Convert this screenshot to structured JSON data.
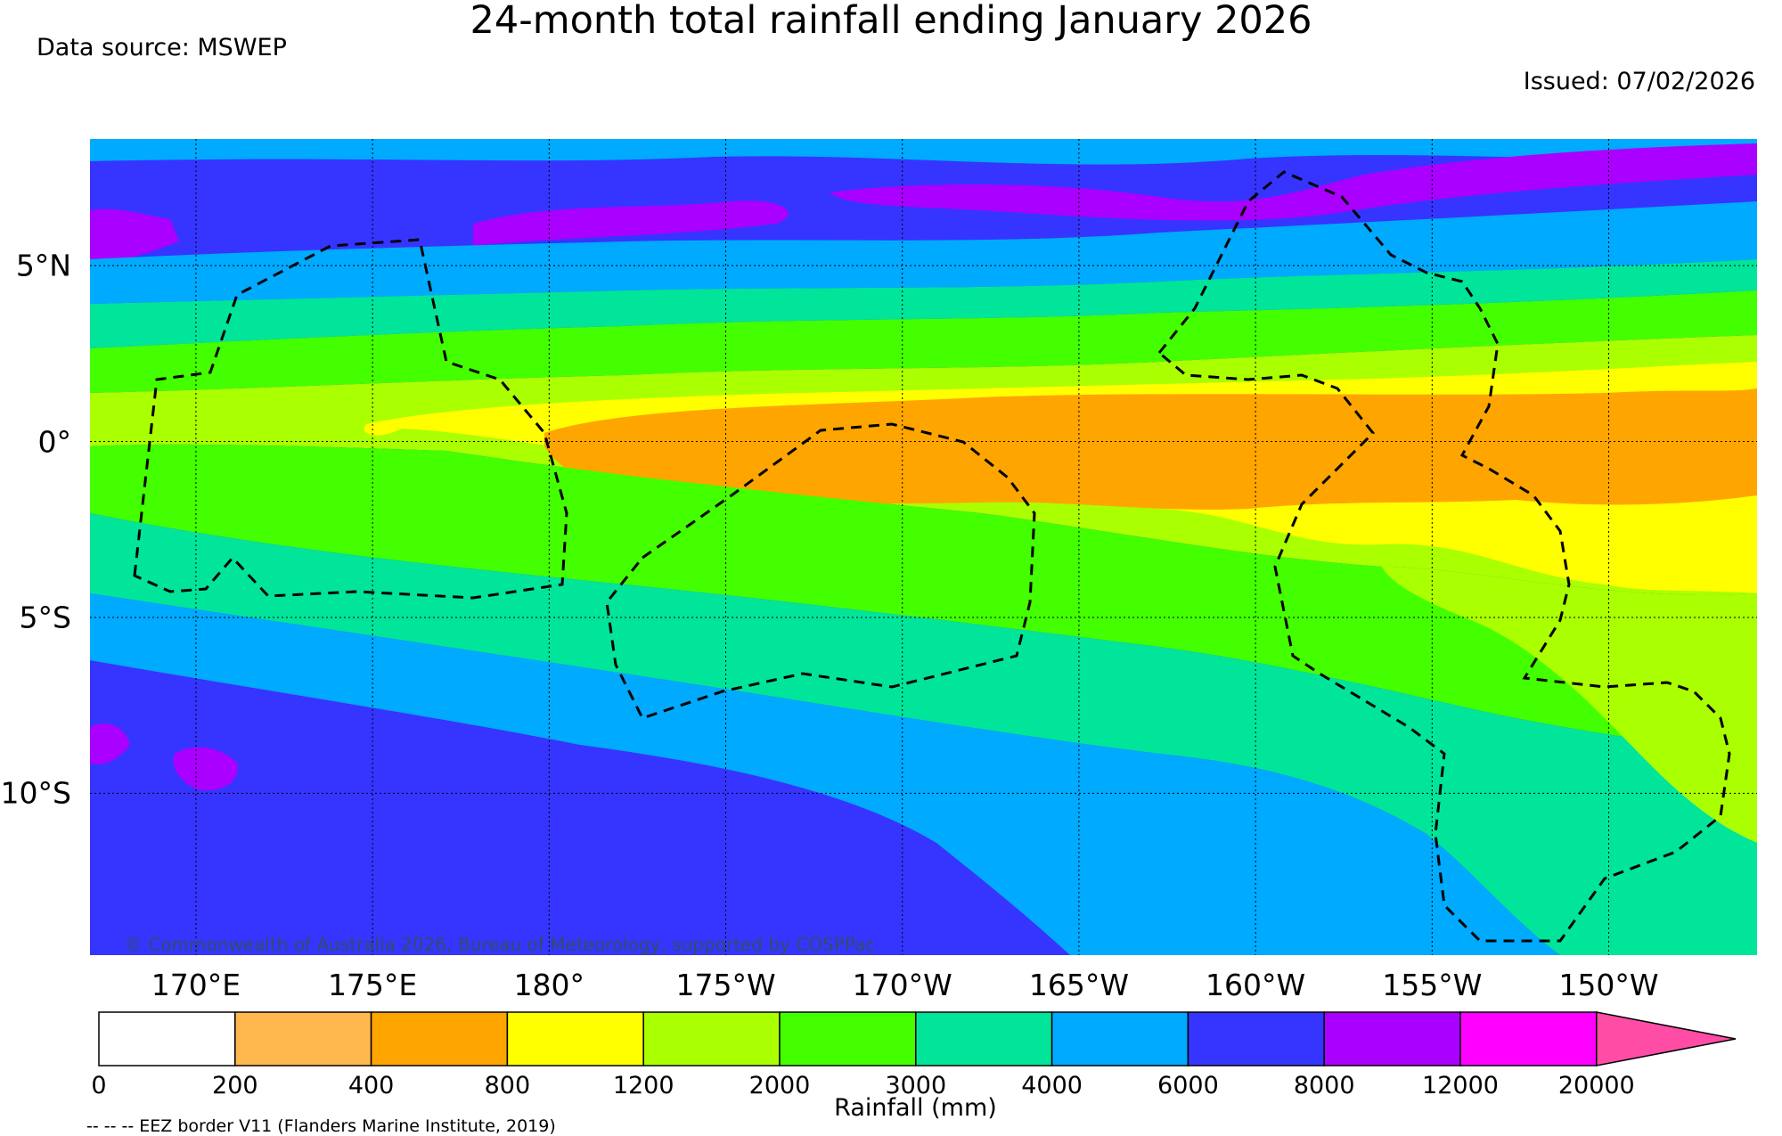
{
  "title": "24-month total rainfall ending January 2026",
  "data_source": "Data source: MSWEP",
  "issued": "Issued: 07/02/2026",
  "copyright": "© Commonwealth of Australia 2026, Bureau of Meteorology, supported by COSPPac",
  "map_extent": {
    "lon_min": 167,
    "lon_max": 214.2,
    "lat_max": 8.6,
    "lat_min": -14.6
  },
  "lon_ticks": [
    {
      "label": "170°E",
      "lon": 170
    },
    {
      "label": "175°E",
      "lon": 175
    },
    {
      "label": "180°",
      "lon": 180
    },
    {
      "label": "175°W",
      "lon": 185
    },
    {
      "label": "170°W",
      "lon": 190
    },
    {
      "label": "165°W",
      "lon": 195
    },
    {
      "label": "160°W",
      "lon": 200
    },
    {
      "label": "155°W",
      "lon": 205
    },
    {
      "label": "150°W",
      "lon": 210
    }
  ],
  "lat_ticks": [
    {
      "label": "5°N",
      "lat": 5
    },
    {
      "label": "0°",
      "lat": 0
    },
    {
      "label": "5°S",
      "lat": -5
    },
    {
      "label": "10°S",
      "lat": -10
    }
  ],
  "colorbar": {
    "boundaries": [
      "0",
      "200",
      "400",
      "800",
      "1200",
      "2000",
      "3000",
      "4000",
      "6000",
      "8000",
      "12000",
      "20000"
    ],
    "colors": [
      "#ffffff",
      "#ffb84d",
      "#ffa500",
      "#ffff00",
      "#aaff00",
      "#44ff00",
      "#00e59a",
      "#00aaff",
      "#3535ff",
      "#aa00ff",
      "#ff00ff"
    ],
    "extend_color": "#ff4da6",
    "label": "Rainfall (mm)"
  },
  "eez_note": "-- -- -- EEZ border V11 (Flanders Marine Institute, 2019)"
}
